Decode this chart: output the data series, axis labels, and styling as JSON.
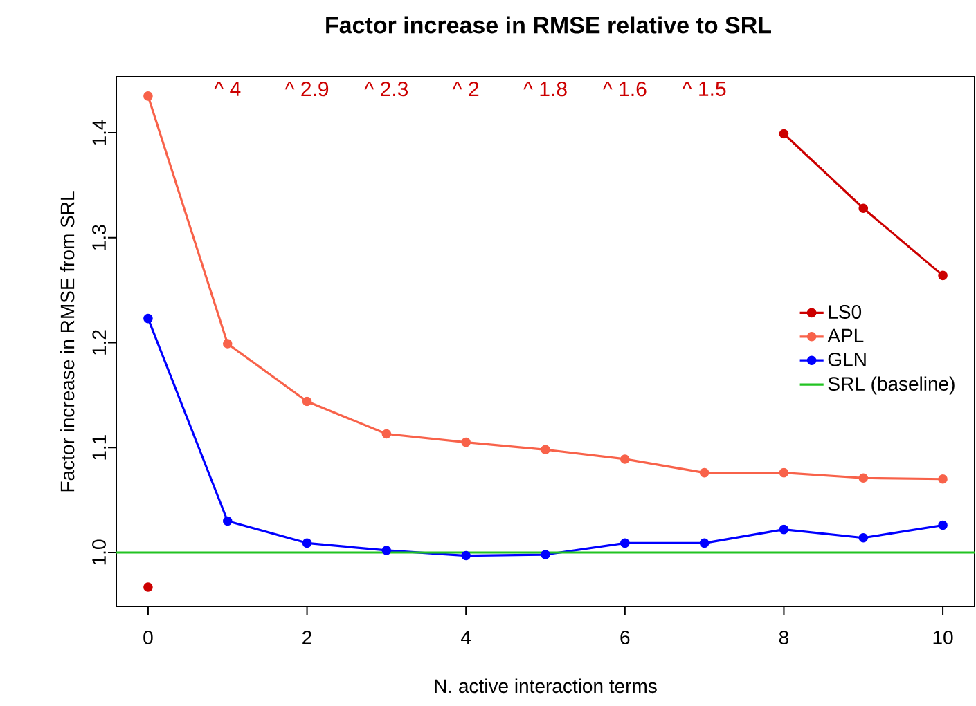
{
  "chart_data": {
    "type": "line",
    "title": "Factor increase in RMSE relative to SRL",
    "xlabel": "N. active interaction terms",
    "ylabel": "Factor increase in RMSE from SRL",
    "x": [
      0,
      1,
      2,
      3,
      4,
      5,
      6,
      7,
      8,
      9,
      10
    ],
    "series": [
      {
        "name": "LS0",
        "color": "#cc0000",
        "values": [
          0.967,
          null,
          null,
          null,
          null,
          null,
          null,
          null,
          1.399,
          1.328,
          1.264
        ]
      },
      {
        "name": "APL",
        "color": "#f8624a",
        "values": [
          1.435,
          1.199,
          1.144,
          1.113,
          1.105,
          1.098,
          1.089,
          1.076,
          1.076,
          1.071,
          1.07
        ]
      },
      {
        "name": "GLN",
        "color": "#0000ff",
        "values": [
          1.223,
          1.03,
          1.009,
          1.002,
          0.997,
          0.998,
          1.009,
          1.009,
          1.022,
          1.014,
          1.026
        ]
      }
    ],
    "ref_lines": [
      {
        "axis": "y",
        "value": 1.0,
        "label": "SRL (baseline)",
        "color": "#22c322"
      }
    ],
    "annotations": [
      "^ 4",
      "^ 2.9",
      "^ 2.3",
      "^ 2",
      "^ 1.8",
      "^ 1.6",
      "^ 1.5"
    ],
    "xlim": [
      -0.4,
      10.4
    ],
    "ylim": [
      0.9486,
      1.4534
    ],
    "xticks": [
      0,
      2,
      4,
      6,
      8,
      10
    ],
    "yticks": [
      {
        "value": 1.0,
        "label": "1.0"
      },
      1.1,
      1.2,
      1.3,
      1.4
    ],
    "marker": "circle",
    "legend": "right",
    "grid": false
  }
}
